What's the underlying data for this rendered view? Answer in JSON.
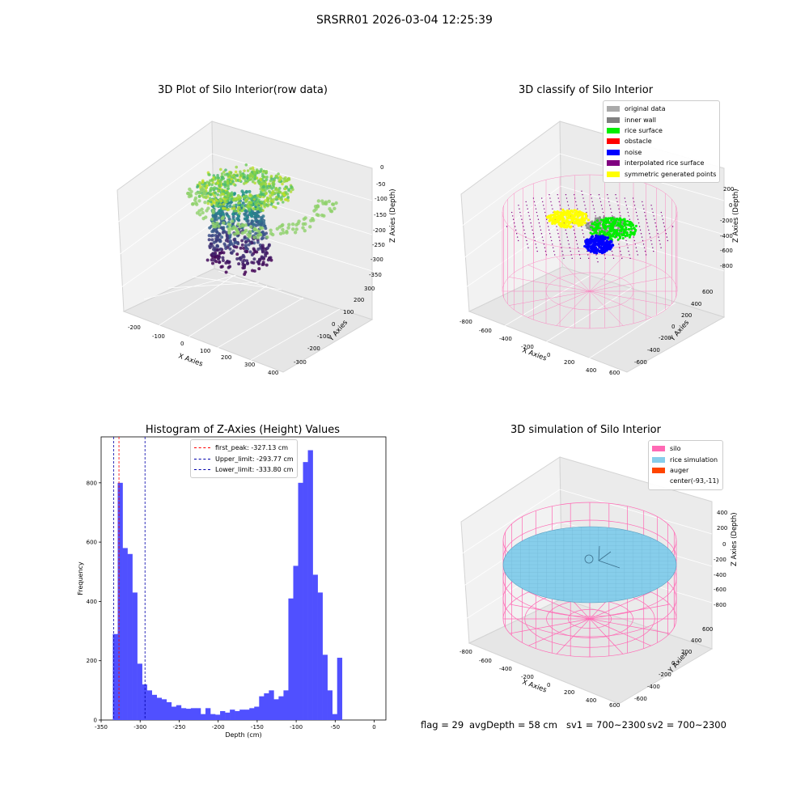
{
  "suptitle": "SRSRR01 2026-03-04 12:25:39",
  "colors": {
    "hist_bar": "#5050ff",
    "first_peak": "#ff0000",
    "limits": "#0000aa",
    "pane": "#f2f2f2",
    "silo": "#ff69b4",
    "rice": "#87ceeb",
    "auger": "#ff4500"
  },
  "panel1": {
    "title": "3D Plot of Silo Interior(row data)",
    "xlabel": "X Axies",
    "ylabel": "Y Axies",
    "zlabel": "Z Axies (Depth)",
    "xticks": [
      "-200",
      "-100",
      "0",
      "100",
      "200",
      "300",
      "400"
    ],
    "yticks": [
      "300",
      "200",
      "100",
      "0",
      "-100",
      "-200",
      "-300"
    ],
    "zticks": [
      "0",
      "-50",
      "-100",
      "-150",
      "-200",
      "-250",
      "-300",
      "-350"
    ]
  },
  "panel2": {
    "title": "3D classify of Silo Interior",
    "legend": [
      {
        "label": "original data",
        "color": "#aaaaaa"
      },
      {
        "label": "inner wall",
        "color": "#808080"
      },
      {
        "label": "rice surface",
        "color": "#00ee00"
      },
      {
        "label": "obstacle",
        "color": "#ff0000"
      },
      {
        "label": "noise",
        "color": "#0000ff"
      },
      {
        "label": "interpolated rice surface",
        "color": "#800080"
      },
      {
        "label": "symmetric generated points",
        "color": "#ffff00"
      }
    ],
    "xlabel": "X Axies",
    "ylabel": "Y Axies",
    "zlabel": "Z Axies (Depth)",
    "xticks": [
      "-800",
      "-600",
      "-400",
      "-200",
      "0",
      "200",
      "400",
      "600"
    ],
    "yticks": [
      "600",
      "400",
      "200",
      "0",
      "-200",
      "-400",
      "-600"
    ],
    "zticks": [
      "200",
      "0",
      "-200",
      "-400",
      "-600",
      "-800"
    ]
  },
  "panel3": {
    "title": "3D simulation of Silo Interior",
    "legend": [
      {
        "label": "silo",
        "color": "#ff69b4"
      },
      {
        "label": "rice simulation",
        "color": "#87ceeb"
      },
      {
        "label": "auger",
        "color": "#ff4500"
      },
      {
        "label": "center(-93,-11)",
        "color": ""
      }
    ],
    "xlabel": "X Axies",
    "ylabel": "Y Axies",
    "zlabel": "Z Axies (Depth)",
    "xticks": [
      "-800",
      "-600",
      "-400",
      "-200",
      "0",
      "200",
      "400",
      "600"
    ],
    "yticks": [
      "600",
      "400",
      "200",
      "0",
      "-200",
      "-400",
      "-600"
    ],
    "zticks": [
      "400",
      "200",
      "0",
      "-200",
      "-400",
      "-600",
      "-800"
    ]
  },
  "footer": {
    "flag": "flag = 29",
    "avg": "avgDepth = 58 cm",
    "sv1": "sv1 = 700~2300",
    "sv2": "sv2 = 700~2300"
  },
  "chart_data": {
    "type": "bar",
    "title": "Histogram of Z-Axies (Height) Values",
    "xlabel": "Depth (cm)",
    "ylabel": "Frequency",
    "xlim": [
      -350,
      15
    ],
    "ylim": [
      0,
      955
    ],
    "xticks": [
      -350,
      -300,
      -250,
      -200,
      -150,
      -100,
      -50,
      0
    ],
    "yticks": [
      0,
      200,
      400,
      600,
      800
    ],
    "bin_start": -335,
    "bin_width": 6.25,
    "values": [
      290,
      800,
      580,
      560,
      430,
      190,
      120,
      100,
      85,
      75,
      70,
      60,
      45,
      50,
      40,
      38,
      40,
      40,
      20,
      40,
      20,
      18,
      30,
      25,
      35,
      30,
      35,
      35,
      40,
      45,
      80,
      90,
      100,
      70,
      80,
      100,
      410,
      520,
      800,
      870,
      910,
      490,
      430,
      220,
      100,
      20,
      210
    ],
    "vlines": [
      {
        "label": "first_peak: -327.13 cm",
        "x": -327.13,
        "color": "#ff0000"
      },
      {
        "label": "Upper_limit: -293.77 cm",
        "x": -293.77,
        "color": "#0000aa"
      },
      {
        "label": "Lower_limit: -333.80 cm",
        "x": -333.8,
        "color": "#0000aa"
      }
    ]
  }
}
